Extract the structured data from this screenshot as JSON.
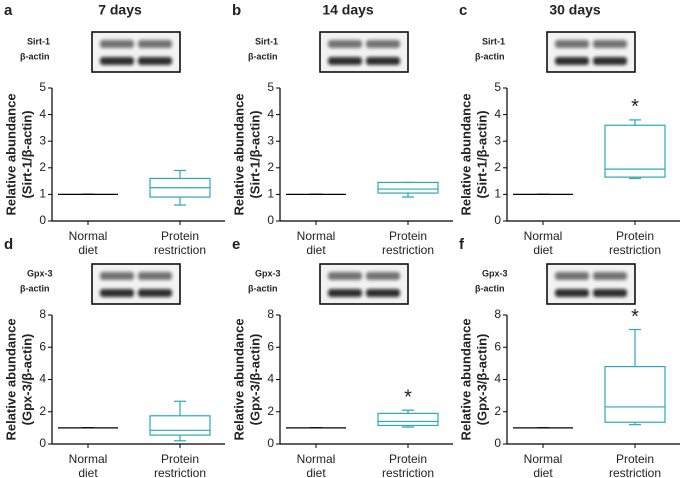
{
  "chart_data": [
    {
      "type": "box",
      "panel": "a",
      "title": "7 days",
      "blot_labels": [
        "Sirt-1",
        "β-actin"
      ],
      "y_label": [
        "Relative abundance",
        "(Sirt-1/β-actin)"
      ],
      "categories": [
        [
          "Normal",
          "diet"
        ],
        [
          "Protein",
          "restriction"
        ]
      ],
      "colors": [
        "#000000",
        "#2aa9b9"
      ],
      "boxes": [
        {
          "min": 1,
          "q1": 1,
          "median": 1,
          "q3": 1,
          "max": 1
        },
        {
          "min": 0.6,
          "q1": 0.9,
          "median": 1.25,
          "q3": 1.6,
          "max": 1.9
        }
      ],
      "ylim": [
        0,
        5
      ],
      "yticks": [
        0,
        1,
        2,
        3,
        4,
        5
      ],
      "annotations": []
    },
    {
      "type": "box",
      "panel": "b",
      "title": "14 days",
      "blot_labels": [
        "Sirt-1",
        "β-actin"
      ],
      "y_label": [
        "Relative abundance",
        "(Sirt-1/β-actin)"
      ],
      "categories": [
        [
          "Normal",
          "diet"
        ],
        [
          "Protein",
          "restriction"
        ]
      ],
      "colors": [
        "#000000",
        "#2aa9b9"
      ],
      "boxes": [
        {
          "min": 1,
          "q1": 1,
          "median": 1,
          "q3": 1,
          "max": 1
        },
        {
          "min": 0.9,
          "q1": 1.05,
          "median": 1.2,
          "q3": 1.45,
          "max": 1.45
        }
      ],
      "ylim": [
        0,
        5
      ],
      "yticks": [
        0,
        1,
        2,
        3,
        4,
        5
      ],
      "annotations": []
    },
    {
      "type": "box",
      "panel": "c",
      "title": "30 days",
      "blot_labels": [
        "Sirt-1",
        "β-actin"
      ],
      "y_label": [
        "Relative abundance",
        "(Sirt-1/β-actin)"
      ],
      "categories": [
        [
          "Normal",
          "diet"
        ],
        [
          "Protein",
          "restriction"
        ]
      ],
      "colors": [
        "#000000",
        "#2aa9b9"
      ],
      "boxes": [
        {
          "min": 1,
          "q1": 1,
          "median": 1,
          "q3": 1,
          "max": 1
        },
        {
          "min": 1.6,
          "q1": 1.65,
          "median": 1.95,
          "q3": 3.6,
          "max": 3.8
        }
      ],
      "ylim": [
        0,
        5
      ],
      "yticks": [
        0,
        1,
        2,
        3,
        4,
        5
      ],
      "annotations": [
        {
          "category": 1,
          "text": "*"
        }
      ]
    },
    {
      "type": "box",
      "panel": "d",
      "title": "",
      "blot_labels": [
        "Gpx-3",
        "β-actin"
      ],
      "y_label": [
        "Relative abundance",
        "(Gpx-3/β-actin)"
      ],
      "categories": [
        [
          "Normal",
          "diet"
        ],
        [
          "Protein",
          "restriction"
        ]
      ],
      "colors": [
        "#000000",
        "#2aa9b9"
      ],
      "boxes": [
        {
          "min": 1,
          "q1": 1,
          "median": 1,
          "q3": 1,
          "max": 1
        },
        {
          "min": 0.2,
          "q1": 0.55,
          "median": 0.85,
          "q3": 1.75,
          "max": 2.65
        }
      ],
      "ylim": [
        0,
        8
      ],
      "yticks": [
        0,
        2,
        4,
        6,
        8
      ],
      "annotations": []
    },
    {
      "type": "box",
      "panel": "e",
      "title": "",
      "blot_labels": [
        "Gpx-3",
        "β-actin"
      ],
      "y_label": [
        "Relative abundance",
        "(Gpx-3/β-actin)"
      ],
      "categories": [
        [
          "Normal",
          "diet"
        ],
        [
          "Protein",
          "restriction"
        ]
      ],
      "colors": [
        "#000000",
        "#2aa9b9"
      ],
      "boxes": [
        {
          "min": 1,
          "q1": 1,
          "median": 1,
          "q3": 1,
          "max": 1
        },
        {
          "min": 1.05,
          "q1": 1.15,
          "median": 1.4,
          "q3": 1.9,
          "max": 2.1
        }
      ],
      "ylim": [
        0,
        8
      ],
      "yticks": [
        0,
        2,
        4,
        6,
        8
      ],
      "annotations": [
        {
          "category": 1,
          "text": "*"
        }
      ]
    },
    {
      "type": "box",
      "panel": "f",
      "title": "",
      "blot_labels": [
        "Gpx-3",
        "β-actin"
      ],
      "y_label": [
        "Relative abundance",
        "(Gpx-3/β-actin)"
      ],
      "categories": [
        [
          "Normal",
          "diet"
        ],
        [
          "Protein",
          "restriction"
        ]
      ],
      "colors": [
        "#000000",
        "#2aa9b9"
      ],
      "boxes": [
        {
          "min": 1,
          "q1": 1,
          "median": 1,
          "q3": 1,
          "max": 1
        },
        {
          "min": 1.2,
          "q1": 1.35,
          "median": 2.3,
          "q3": 4.8,
          "max": 7.1
        }
      ],
      "ylim": [
        0,
        8
      ],
      "yticks": [
        0,
        2,
        4,
        6,
        8
      ],
      "annotations": [
        {
          "category": 1,
          "text": "*"
        }
      ]
    }
  ]
}
